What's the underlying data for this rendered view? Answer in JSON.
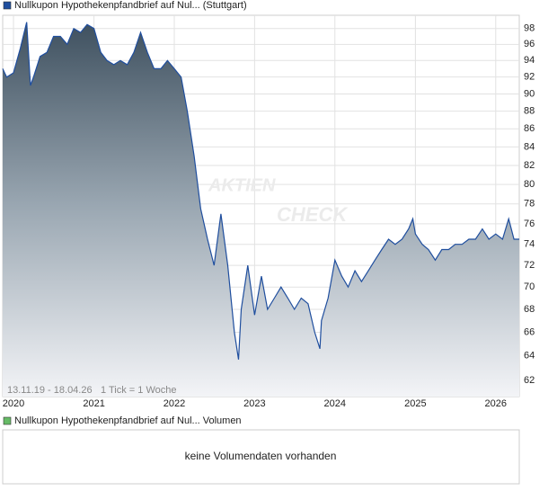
{
  "chart_data": {
    "type": "area",
    "legend": "Nullkupon Hypothekenpfandbrief auf Nul... (Stuttgart)",
    "color": "#1f4e9e",
    "range_label": "13.11.19 - 18.04.26",
    "tick_label": "1 Tick = 1 Woche",
    "watermark": [
      "AKTIEN",
      "CHECK"
    ],
    "log_scale": true,
    "grid": true,
    "x": [
      "2019-11-13",
      "2019-12-01",
      "2020-01-01",
      "2020-02-01",
      "2020-03-01",
      "2020-03-18",
      "2020-04-01",
      "2020-05-01",
      "2020-06-01",
      "2020-07-01",
      "2020-08-01",
      "2020-09-01",
      "2020-10-01",
      "2020-11-01",
      "2020-12-01",
      "2021-01-01",
      "2021-02-01",
      "2021-03-01",
      "2021-04-01",
      "2021-05-01",
      "2021-06-01",
      "2021-07-01",
      "2021-08-01",
      "2021-09-01",
      "2021-10-01",
      "2021-11-01",
      "2021-12-01",
      "2022-01-01",
      "2022-02-01",
      "2022-03-01",
      "2022-04-01",
      "2022-05-01",
      "2022-06-01",
      "2022-07-01",
      "2022-08-01",
      "2022-09-01",
      "2022-10-01",
      "2022-10-20",
      "2022-11-01",
      "2022-12-01",
      "2023-01-01",
      "2023-02-01",
      "2023-03-01",
      "2023-04-01",
      "2023-05-01",
      "2023-06-01",
      "2023-07-01",
      "2023-08-01",
      "2023-09-01",
      "2023-10-01",
      "2023-10-25",
      "2023-11-01",
      "2023-12-01",
      "2024-01-01",
      "2024-02-01",
      "2024-03-01",
      "2024-04-01",
      "2024-05-01",
      "2024-06-01",
      "2024-07-01",
      "2024-08-01",
      "2024-09-01",
      "2024-10-01",
      "2024-11-01",
      "2024-12-01",
      "2024-12-20",
      "2025-01-01",
      "2025-02-01",
      "2025-03-01",
      "2025-04-01",
      "2025-05-01",
      "2025-06-01",
      "2025-07-01",
      "2025-08-01",
      "2025-09-01",
      "2025-10-01",
      "2025-11-01",
      "2025-12-01",
      "2026-01-01",
      "2026-02-01",
      "2026-03-01",
      "2026-03-25",
      "2026-04-18"
    ],
    "values": [
      93,
      92,
      92.5,
      95.5,
      98.8,
      91,
      92,
      94.5,
      95,
      97,
      97,
      96,
      98,
      97.5,
      98.5,
      98,
      95,
      94,
      93.5,
      94,
      93.5,
      95,
      97.5,
      95,
      93,
      93,
      94,
      93,
      92,
      88,
      83,
      77.5,
      74.5,
      72,
      77,
      72,
      66,
      63.7,
      68,
      72,
      67.5,
      71,
      68,
      69,
      70,
      69,
      68,
      69,
      68.5,
      66,
      64.6,
      67,
      69,
      72.5,
      71,
      70,
      71.5,
      70.5,
      71.5,
      72.5,
      73.5,
      74.5,
      74,
      74.5,
      75.5,
      76.5,
      75,
      74,
      73.5,
      72.5,
      73.5,
      73.5,
      74,
      74,
      74.5,
      74.5,
      75.5,
      74.5,
      75,
      74.5,
      76.5,
      74.5,
      74.5
    ],
    "xlim": [
      "2019-11-13",
      "2026-04-18"
    ],
    "xticks": [
      {
        "value": "2020-01-01",
        "label": "2020"
      },
      {
        "value": "2021-01-01",
        "label": "2021"
      },
      {
        "value": "2022-01-01",
        "label": "2022"
      },
      {
        "value": "2023-01-01",
        "label": "2023"
      },
      {
        "value": "2024-01-01",
        "label": "2024"
      },
      {
        "value": "2025-01-01",
        "label": "2025"
      },
      {
        "value": "2026-01-01",
        "label": "2026"
      }
    ],
    "ylim": [
      60.7,
      99.7
    ],
    "yticks": [
      62,
      64,
      66,
      68,
      70,
      72,
      74,
      76,
      78,
      80,
      82,
      84,
      86,
      88,
      90,
      92,
      94,
      96,
      98
    ]
  },
  "volume_panel": {
    "legend": "Nullkupon Hypothekenpfandbrief auf Nul... Volumen",
    "color": "#66bb66",
    "message": "keine Volumendaten vorhanden"
  }
}
